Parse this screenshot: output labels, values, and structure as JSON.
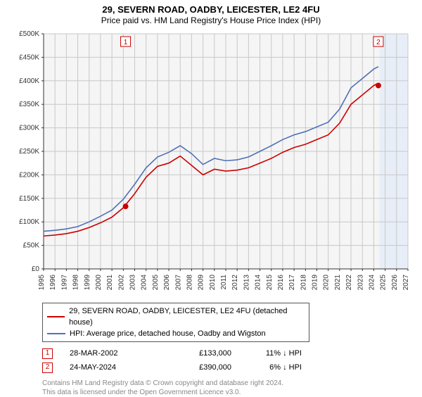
{
  "title": "29, SEVERN ROAD, OADBY, LEICESTER, LE2 4FU",
  "subtitle": "Price paid vs. HM Land Registry's House Price Index (HPI)",
  "chart": {
    "type": "line",
    "background_color": "#ffffff",
    "plot_background_color": "#f5f5f5",
    "grid_color": "#c8c8c8",
    "axis_color": "#333333",
    "axis_fontsize": 10,
    "x": {
      "min": 1995,
      "max": 2027,
      "ticks": [
        1995,
        1996,
        1997,
        1998,
        1999,
        2000,
        2001,
        2002,
        2003,
        2004,
        2005,
        2006,
        2007,
        2008,
        2009,
        2010,
        2011,
        2012,
        2013,
        2014,
        2015,
        2016,
        2017,
        2018,
        2019,
        2020,
        2021,
        2022,
        2023,
        2024,
        2025,
        2026,
        2027
      ],
      "tick_label_rotation": -90
    },
    "y": {
      "min": 0,
      "max": 500000,
      "ticks": [
        0,
        50000,
        100000,
        150000,
        200000,
        250000,
        300000,
        350000,
        400000,
        450000,
        500000
      ],
      "tick_prefix": "£",
      "tick_suffix_k": true
    },
    "future_band": {
      "from": 2024.5,
      "to": 2027,
      "color": "#e8eef7"
    },
    "series": [
      {
        "name": "property",
        "label": "29, SEVERN ROAD, OADBY, LEICESTER, LE2 4FU (detached house)",
        "color": "#cc0000",
        "line_width": 1.6,
        "points": [
          [
            1995,
            70000
          ],
          [
            1996,
            72000
          ],
          [
            1997,
            75000
          ],
          [
            1998,
            80000
          ],
          [
            1999,
            88000
          ],
          [
            2000,
            98000
          ],
          [
            2001,
            110000
          ],
          [
            2002,
            130000
          ],
          [
            2003,
            160000
          ],
          [
            2004,
            195000
          ],
          [
            2005,
            218000
          ],
          [
            2006,
            225000
          ],
          [
            2007,
            240000
          ],
          [
            2008,
            220000
          ],
          [
            2009,
            200000
          ],
          [
            2010,
            212000
          ],
          [
            2011,
            208000
          ],
          [
            2012,
            210000
          ],
          [
            2013,
            215000
          ],
          [
            2014,
            225000
          ],
          [
            2015,
            235000
          ],
          [
            2016,
            248000
          ],
          [
            2017,
            258000
          ],
          [
            2018,
            265000
          ],
          [
            2019,
            275000
          ],
          [
            2020,
            285000
          ],
          [
            2021,
            310000
          ],
          [
            2022,
            350000
          ],
          [
            2023,
            370000
          ],
          [
            2024,
            390000
          ],
          [
            2024.4,
            395000
          ]
        ]
      },
      {
        "name": "hpi",
        "label": "HPI: Average price, detached house, Oadby and Wigston",
        "color": "#5070b8",
        "line_width": 1.6,
        "points": [
          [
            1995,
            80000
          ],
          [
            1996,
            82000
          ],
          [
            1997,
            85000
          ],
          [
            1998,
            90000
          ],
          [
            1999,
            100000
          ],
          [
            2000,
            112000
          ],
          [
            2001,
            125000
          ],
          [
            2002,
            148000
          ],
          [
            2003,
            180000
          ],
          [
            2004,
            215000
          ],
          [
            2005,
            238000
          ],
          [
            2006,
            248000
          ],
          [
            2007,
            262000
          ],
          [
            2008,
            245000
          ],
          [
            2009,
            222000
          ],
          [
            2010,
            235000
          ],
          [
            2011,
            230000
          ],
          [
            2012,
            232000
          ],
          [
            2013,
            238000
          ],
          [
            2014,
            250000
          ],
          [
            2015,
            262000
          ],
          [
            2016,
            275000
          ],
          [
            2017,
            285000
          ],
          [
            2018,
            292000
          ],
          [
            2019,
            302000
          ],
          [
            2020,
            312000
          ],
          [
            2021,
            340000
          ],
          [
            2022,
            385000
          ],
          [
            2023,
            405000
          ],
          [
            2024,
            425000
          ],
          [
            2024.4,
            430000
          ]
        ]
      }
    ],
    "event_markers": [
      {
        "id": "1",
        "x": 2002.2,
        "y": 133000,
        "dot_color": "#cc0000",
        "box_color": "#cc0000"
      },
      {
        "id": "2",
        "x": 2024.4,
        "y": 390000,
        "dot_color": "#cc0000",
        "box_color": "#cc0000"
      }
    ]
  },
  "legend": {
    "items": [
      {
        "label": "29, SEVERN ROAD, OADBY, LEICESTER, LE2 4FU (detached house)",
        "color": "#cc0000"
      },
      {
        "label": "HPI: Average price, detached house, Oadby and Wigston",
        "color": "#5070b8"
      }
    ]
  },
  "marker_rows": [
    {
      "id": "1",
      "date": "28-MAR-2002",
      "price": "£133,000",
      "delta": "11% ↓ HPI"
    },
    {
      "id": "2",
      "date": "24-MAY-2024",
      "price": "£390,000",
      "delta": "6% ↓ HPI"
    }
  ],
  "footnote_lines": [
    "Contains HM Land Registry data © Crown copyright and database right 2024.",
    "This data is licensed under the Open Government Licence v3.0."
  ]
}
